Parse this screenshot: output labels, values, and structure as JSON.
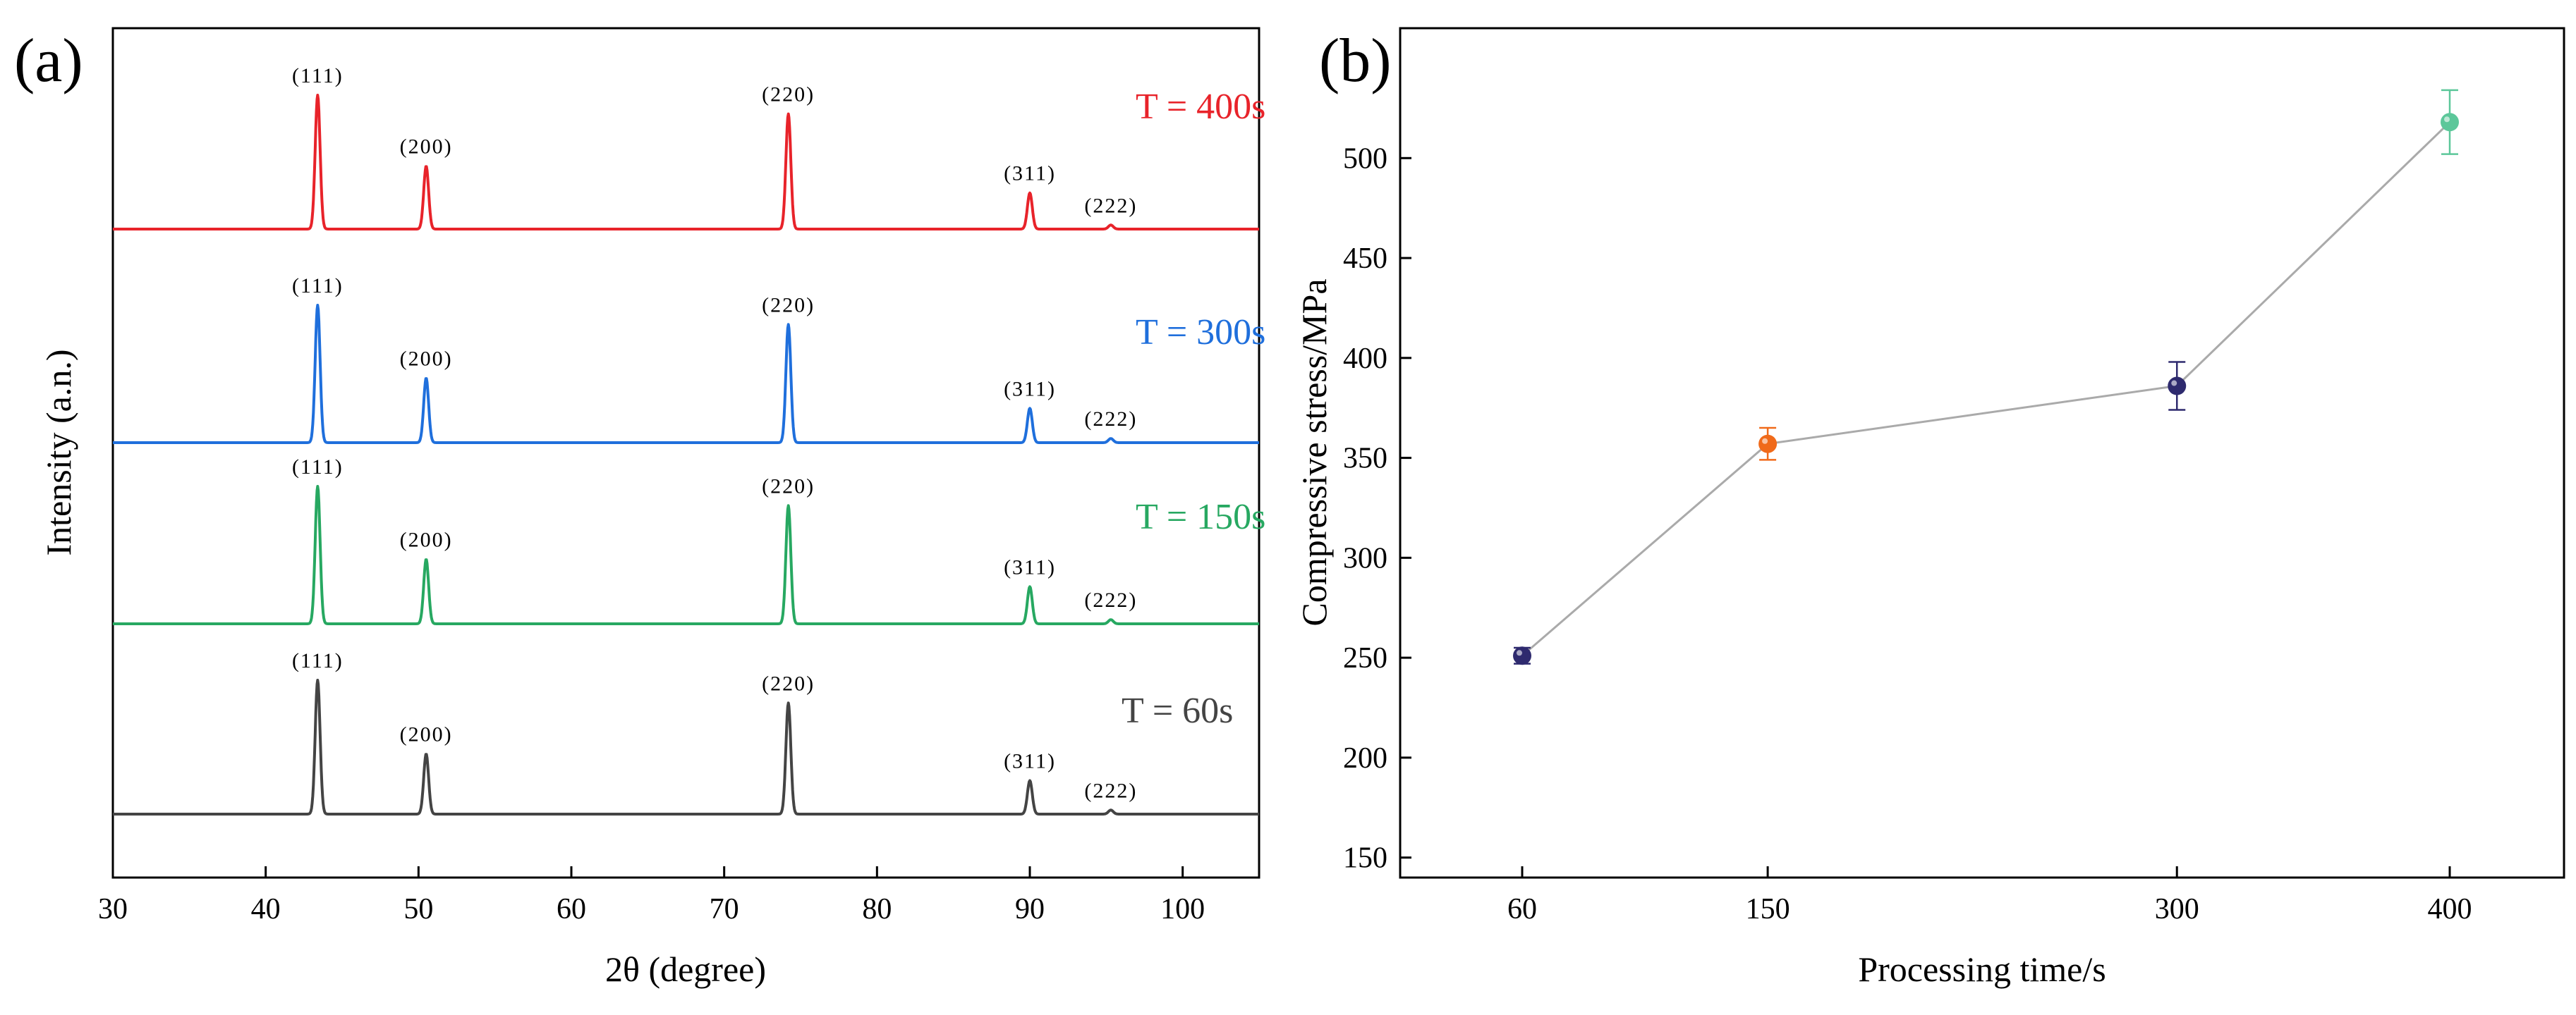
{
  "figure": {
    "panel_a_label": "(a)",
    "panel_b_label": "(b)"
  },
  "chart_data": [
    {
      "type": "line",
      "panel": "(a)",
      "xlabel": "2θ (degree)",
      "ylabel": "Intensity (a.n.)",
      "xlim": [
        30,
        105
      ],
      "xticks": [
        30,
        40,
        50,
        60,
        70,
        80,
        90,
        100
      ],
      "grid": false,
      "stacked_offset": true,
      "peaks_2theta": [
        43.4,
        50.5,
        74.2,
        90.0,
        95.3
      ],
      "series": [
        {
          "name": "T = 400s",
          "color": "#e8232a",
          "peaks": [
            {
              "x": 43.4,
              "label": "(111)",
              "rel_intensity": 1.0
            },
            {
              "x": 50.5,
              "label": "(200)",
              "rel_intensity": 0.47
            },
            {
              "x": 74.2,
              "label": "(220)",
              "rel_intensity": 0.86
            },
            {
              "x": 90.0,
              "label": "(311)",
              "rel_intensity": 0.27
            },
            {
              "x": 95.3,
              "label": "(222)",
              "rel_intensity": 0.03
            }
          ]
        },
        {
          "name": "T = 300s",
          "color": "#1f6fdc",
          "peaks": [
            {
              "x": 43.4,
              "label": "(111)",
              "rel_intensity": 1.0
            },
            {
              "x": 50.5,
              "label": "(200)",
              "rel_intensity": 0.47
            },
            {
              "x": 74.2,
              "label": "(220)",
              "rel_intensity": 0.86
            },
            {
              "x": 90.0,
              "label": "(311)",
              "rel_intensity": 0.25
            },
            {
              "x": 95.3,
              "label": "(222)",
              "rel_intensity": 0.03
            }
          ]
        },
        {
          "name": "T = 150s",
          "color": "#27a861",
          "peaks": [
            {
              "x": 43.4,
              "label": "(111)",
              "rel_intensity": 1.0
            },
            {
              "x": 50.5,
              "label": "(200)",
              "rel_intensity": 0.47
            },
            {
              "x": 74.2,
              "label": "(220)",
              "rel_intensity": 0.86
            },
            {
              "x": 90.0,
              "label": "(311)",
              "rel_intensity": 0.27
            },
            {
              "x": 95.3,
              "label": "(222)",
              "rel_intensity": 0.03
            }
          ]
        },
        {
          "name": "T = 60s",
          "color": "#444444",
          "peaks": [
            {
              "x": 43.4,
              "label": "(111)",
              "rel_intensity": 1.0
            },
            {
              "x": 50.5,
              "label": "(200)",
              "rel_intensity": 0.45
            },
            {
              "x": 74.2,
              "label": "(220)",
              "rel_intensity": 0.83
            },
            {
              "x": 90.0,
              "label": "(311)",
              "rel_intensity": 0.25
            },
            {
              "x": 95.3,
              "label": "(222)",
              "rel_intensity": 0.03
            }
          ]
        }
      ]
    },
    {
      "type": "scatter",
      "panel": "(b)",
      "xlabel": "Processing time/s",
      "ylabel": "Compressive stress/MPa",
      "x": [
        60,
        150,
        300,
        400
      ],
      "xticks": [
        60,
        150,
        300,
        400
      ],
      "ylim": [
        140,
        565
      ],
      "yticks": [
        150,
        200,
        250,
        300,
        350,
        400,
        450,
        500
      ],
      "grid": false,
      "connecting_line_color": "#aaaaaa",
      "series": [
        {
          "values": [
            251,
            357,
            386,
            518
          ],
          "errors": [
            4,
            8,
            12,
            16
          ],
          "point_colors": [
            "#2e2a6e",
            "#f06a1a",
            "#2e2a6e",
            "#5cc79a"
          ]
        }
      ]
    }
  ]
}
